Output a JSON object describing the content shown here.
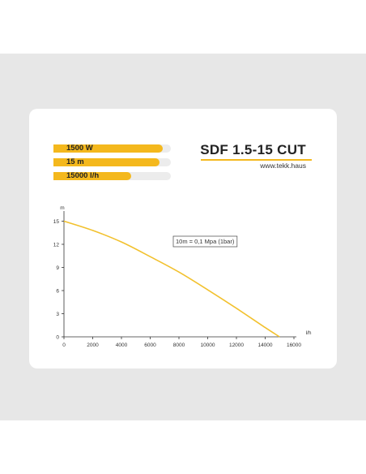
{
  "product": {
    "title": "SDF 1.5-15 CUT",
    "url": "www.tekk.haus"
  },
  "specs": [
    {
      "label": "1500 W",
      "fill_fraction": 0.93
    },
    {
      "label": "15 m",
      "fill_fraction": 0.9
    },
    {
      "label": "15000 l/h",
      "fill_fraction": 0.66
    }
  ],
  "colors": {
    "accent": "#f4b81d",
    "curve": "#f2c12e",
    "card": "#ffffff",
    "background": "#e7e7e7"
  },
  "chart_data": {
    "type": "line",
    "title": "",
    "xlabel": "l/h",
    "ylabel": "m",
    "xlim": [
      0,
      16000
    ],
    "ylim": [
      0,
      16
    ],
    "x_ticks": [
      0,
      2000,
      4000,
      6000,
      8000,
      10000,
      12000,
      14000,
      16000
    ],
    "y_ticks": [
      0,
      3,
      6,
      9,
      12,
      15
    ],
    "grid": false,
    "annotation": "10m = 0,1 Mpa (1bar)",
    "series": [
      {
        "x": [
          0,
          2000,
          4000,
          6000,
          8000,
          10000,
          12000,
          14000,
          15000
        ],
        "y": [
          15,
          13.8,
          12.3,
          10.4,
          8.4,
          6.1,
          3.7,
          1.2,
          0
        ]
      }
    ]
  }
}
